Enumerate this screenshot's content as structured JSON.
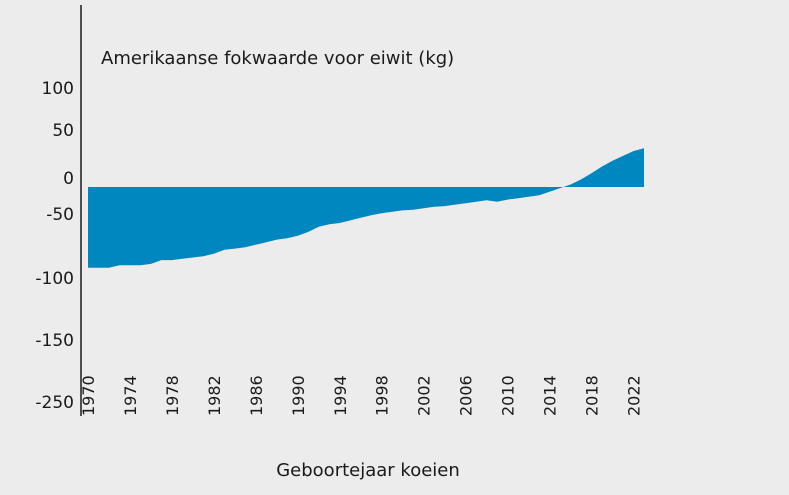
{
  "chart_data": {
    "type": "area",
    "title": "Amerikaanse fokwaarde voor eiwit (kg)",
    "xlabel": "Geboortejaar koeien",
    "ylabel": "",
    "color": "#0087c0",
    "y_ticks": [
      {
        "value": 100,
        "label": "100"
      },
      {
        "value": 50,
        "label": "50"
      },
      {
        "value": 0,
        "label": "0"
      },
      {
        "value": -50,
        "label": "-50"
      },
      {
        "value": -100,
        "label": "-100"
      },
      {
        "value": -150,
        "label": "-150"
      },
      {
        "value": -250,
        "label": "-250"
      }
    ],
    "x_ticks": [
      "1970",
      "1974",
      "1978",
      "1982",
      "1986",
      "1990",
      "1994",
      "1998",
      "2002",
      "2006",
      "2010",
      "2014",
      "2018",
      "2022"
    ],
    "x": [
      1970,
      1971,
      1972,
      1973,
      1974,
      1975,
      1976,
      1977,
      1978,
      1979,
      1980,
      1981,
      1982,
      1983,
      1984,
      1985,
      1986,
      1987,
      1988,
      1989,
      1990,
      1991,
      1992,
      1993,
      1994,
      1995,
      1996,
      1997,
      1998,
      1999,
      2000,
      2001,
      2002,
      2003,
      2004,
      2005,
      2006,
      2007,
      2008,
      2009,
      2010,
      2011,
      2012,
      2013,
      2014,
      2015,
      2016,
      2017,
      2018,
      2019,
      2020,
      2021,
      2022,
      2023
    ],
    "values": [
      -92,
      -92,
      -92,
      -90,
      -90,
      -90,
      -89,
      -86,
      -86,
      -85,
      -84,
      -83,
      -81,
      -78,
      -77,
      -76,
      -74,
      -72,
      -70,
      -69,
      -67,
      -64,
      -60,
      -58,
      -57,
      -55,
      -53,
      -51,
      -49,
      -47,
      -45,
      -44,
      -42,
      -40,
      -39,
      -37,
      -35,
      -33,
      -31,
      -33,
      -30,
      -28,
      -26,
      -24,
      -19,
      -14,
      -9,
      -2,
      5,
      12,
      18,
      23,
      28,
      31
    ]
  }
}
